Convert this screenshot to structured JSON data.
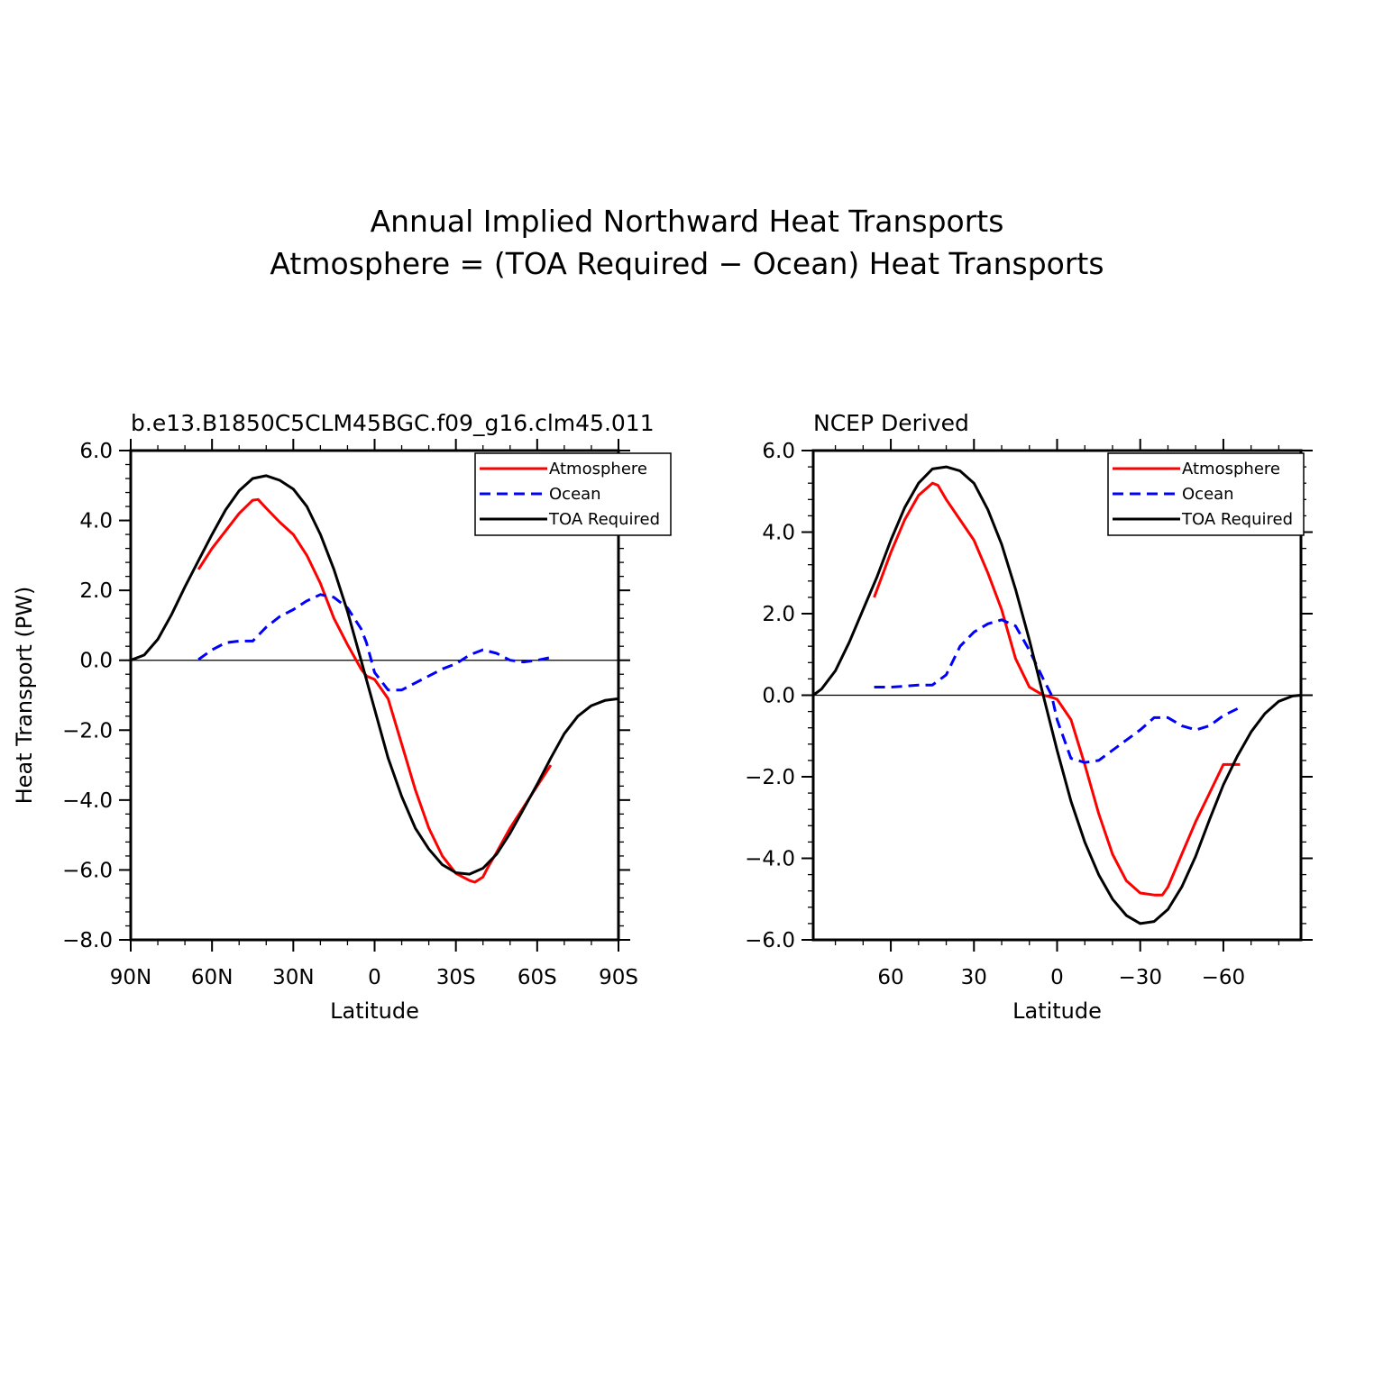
{
  "figure": {
    "title_line1": "Annual Implied Northward Heat Transports",
    "title_line2": "Atmosphere = (TOA Required − Ocean) Heat Transports"
  },
  "colors": {
    "atmosphere": "#ff0000",
    "ocean": "#0000ff",
    "toa": "#000000"
  },
  "chart_data": [
    {
      "type": "line",
      "title": "b.e13.B1850C5CLM45BGC.f09_g16.clm45.011",
      "xlabel": "Latitude",
      "ylabel": "Heat Transport (PW)",
      "xlim": [
        90,
        -90
      ],
      "ylim": [
        -8,
        6
      ],
      "xticks": [
        90,
        60,
        30,
        0,
        -30,
        -60,
        -90
      ],
      "xtick_labels": [
        "90N",
        "60N",
        "30N",
        "0",
        "30S",
        "60S",
        "90S"
      ],
      "yticks": [
        6,
        4,
        2,
        0,
        -2,
        -4,
        -6,
        -8
      ],
      "ytick_labels": [
        "6.0",
        "4.0",
        "2.0",
        "0.0",
        "−2.0",
        "−4.0",
        "−6.0",
        "−8.0"
      ],
      "legend": [
        "Atmosphere",
        "Ocean",
        "TOA Required"
      ],
      "series": [
        {
          "name": "Atmosphere",
          "style": "solid",
          "x": [
            65,
            60,
            55,
            50,
            45,
            43,
            40,
            35,
            30,
            25,
            20,
            15,
            10,
            5,
            3,
            0,
            -5,
            -10,
            -15,
            -20,
            -25,
            -30,
            -35,
            -37,
            -40,
            -42,
            -45,
            -50,
            -55,
            -60,
            -65
          ],
          "y": [
            2.6,
            3.2,
            3.7,
            4.2,
            4.58,
            4.6,
            4.35,
            3.95,
            3.6,
            3.0,
            2.2,
            1.2,
            0.45,
            -0.25,
            -0.45,
            -0.55,
            -1.1,
            -2.4,
            -3.7,
            -4.8,
            -5.6,
            -6.1,
            -6.3,
            -6.35,
            -6.2,
            -5.9,
            -5.5,
            -4.8,
            -4.2,
            -3.6,
            -3.0
          ]
        },
        {
          "name": "Ocean",
          "style": "dashed",
          "x": [
            65,
            60,
            55,
            50,
            45,
            40,
            35,
            30,
            25,
            20,
            15,
            10,
            5,
            3,
            0,
            -5,
            -10,
            -15,
            -20,
            -25,
            -30,
            -35,
            -40,
            -45,
            -50,
            -55,
            -60,
            -65
          ],
          "y": [
            0.02,
            0.3,
            0.5,
            0.55,
            0.55,
            0.95,
            1.25,
            1.45,
            1.7,
            1.88,
            1.8,
            1.5,
            0.9,
            0.5,
            -0.35,
            -0.85,
            -0.85,
            -0.65,
            -0.45,
            -0.25,
            -0.1,
            0.15,
            0.3,
            0.2,
            0.0,
            -0.05,
            0.0,
            0.08
          ]
        },
        {
          "name": "TOA Required",
          "style": "solid",
          "x": [
            90,
            85,
            80,
            75,
            70,
            65,
            60,
            55,
            50,
            45,
            40,
            35,
            30,
            25,
            20,
            15,
            10,
            5,
            0,
            -5,
            -10,
            -15,
            -20,
            -25,
            -30,
            -35,
            -40,
            -45,
            -50,
            -55,
            -60,
            -65,
            -70,
            -75,
            -80,
            -85,
            -90
          ],
          "y": [
            0.0,
            0.15,
            0.6,
            1.3,
            2.1,
            2.85,
            3.6,
            4.3,
            4.85,
            5.2,
            5.28,
            5.15,
            4.9,
            4.4,
            3.6,
            2.6,
            1.4,
            0.0,
            -1.4,
            -2.8,
            -3.9,
            -4.8,
            -5.4,
            -5.85,
            -6.08,
            -6.12,
            -5.95,
            -5.55,
            -4.95,
            -4.25,
            -3.55,
            -2.8,
            -2.1,
            -1.6,
            -1.3,
            -1.15,
            -1.1
          ]
        }
      ]
    },
    {
      "type": "line",
      "title": "NCEP Derived",
      "xlabel": "Latitude",
      "ylabel": "",
      "xlim": [
        88,
        -88
      ],
      "ylim": [
        -6,
        6
      ],
      "xticks": [
        60,
        30,
        0,
        -30,
        -60
      ],
      "xtick_labels": [
        "60",
        "30",
        "0",
        "−30",
        "−60"
      ],
      "yticks": [
        6,
        4,
        2,
        0,
        -2,
        -4,
        -6
      ],
      "ytick_labels": [
        "6.0",
        "4.0",
        "2.0",
        "0.0",
        "−2.0",
        "−4.0",
        "−6.0"
      ],
      "legend": [
        "Atmosphere",
        "Ocean",
        "TOA Required"
      ],
      "series": [
        {
          "name": "Atmosphere",
          "style": "solid",
          "x": [
            66,
            60,
            55,
            50,
            45,
            43,
            40,
            35,
            30,
            25,
            20,
            15,
            10,
            5,
            2,
            0,
            -5,
            -10,
            -15,
            -20,
            -25,
            -30,
            -35,
            -38,
            -40,
            -45,
            -50,
            -55,
            -60,
            -66
          ],
          "y": [
            2.4,
            3.5,
            4.3,
            4.9,
            5.2,
            5.15,
            4.8,
            4.3,
            3.8,
            3.0,
            2.1,
            0.9,
            0.2,
            0.0,
            -0.05,
            -0.1,
            -0.6,
            -1.7,
            -2.9,
            -3.9,
            -4.55,
            -4.85,
            -4.9,
            -4.9,
            -4.7,
            -3.9,
            -3.1,
            -2.4,
            -1.7,
            -1.7
          ]
        },
        {
          "name": "Ocean",
          "style": "dashed",
          "x": [
            66,
            60,
            55,
            50,
            45,
            40,
            35,
            30,
            25,
            20,
            15,
            10,
            5,
            2,
            0,
            -5,
            -10,
            -15,
            -20,
            -25,
            -30,
            -35,
            -40,
            -45,
            -50,
            -55,
            -60,
            -66
          ],
          "y": [
            0.2,
            0.2,
            0.22,
            0.25,
            0.25,
            0.5,
            1.2,
            1.55,
            1.75,
            1.85,
            1.7,
            1.1,
            0.4,
            0.0,
            -0.6,
            -1.55,
            -1.65,
            -1.6,
            -1.35,
            -1.1,
            -0.85,
            -0.55,
            -0.55,
            -0.75,
            -0.85,
            -0.75,
            -0.5,
            -0.3
          ]
        },
        {
          "name": "TOA Required",
          "style": "solid",
          "x": [
            88,
            85,
            80,
            75,
            70,
            65,
            60,
            55,
            50,
            45,
            40,
            35,
            30,
            25,
            20,
            15,
            10,
            5,
            0,
            -5,
            -10,
            -15,
            -20,
            -25,
            -30,
            -35,
            -40,
            -45,
            -50,
            -55,
            -60,
            -65,
            -70,
            -75,
            -80,
            -85,
            -88
          ],
          "y": [
            0.0,
            0.15,
            0.6,
            1.3,
            2.1,
            2.9,
            3.8,
            4.6,
            5.2,
            5.55,
            5.6,
            5.5,
            5.2,
            4.55,
            3.7,
            2.6,
            1.35,
            0.0,
            -1.35,
            -2.6,
            -3.6,
            -4.4,
            -5.0,
            -5.4,
            -5.6,
            -5.55,
            -5.25,
            -4.7,
            -3.95,
            -3.05,
            -2.2,
            -1.5,
            -0.9,
            -0.45,
            -0.15,
            -0.02,
            0.0
          ]
        }
      ]
    }
  ]
}
